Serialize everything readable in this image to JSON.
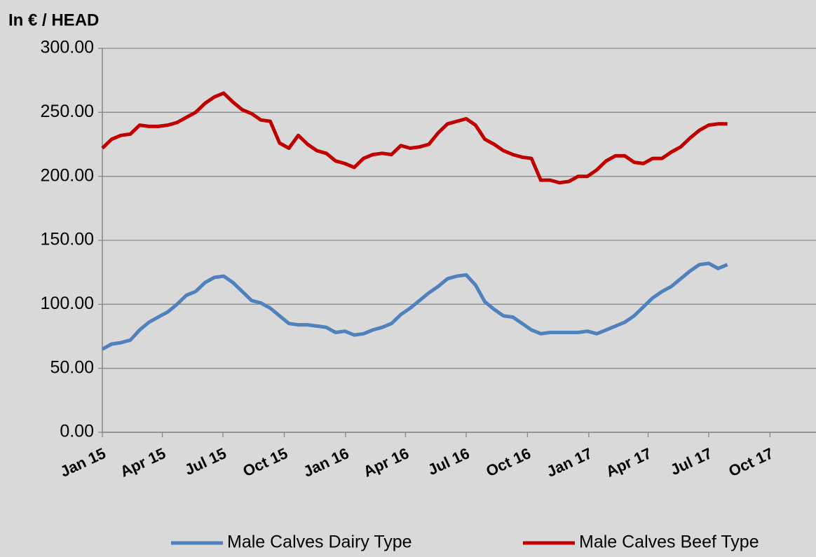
{
  "chart_data": {
    "type": "line",
    "y_axis_label": "In € / HEAD",
    "x": [
      0,
      2,
      4,
      6,
      8,
      10,
      12,
      14,
      16,
      18,
      20,
      22,
      24,
      26,
      28,
      30,
      32,
      34,
      36,
      38,
      40,
      42,
      44,
      46,
      48,
      50,
      52,
      54,
      56,
      58,
      60,
      62,
      64,
      66,
      68,
      70,
      72,
      74,
      76,
      78,
      80,
      82,
      84,
      86,
      88,
      90,
      92,
      94,
      96,
      98,
      100,
      102,
      104,
      106,
      108,
      110,
      112,
      114,
      116,
      118,
      120,
      122,
      124,
      126,
      128,
      130,
      132,
      134
    ],
    "series": [
      {
        "name": "Male Calves Dairy Type",
        "color": "#4f81bd",
        "values": [
          65,
          69,
          70,
          72,
          80,
          86,
          90,
          94,
          100,
          107,
          110,
          117,
          121,
          122,
          117,
          110,
          103,
          101,
          97,
          91,
          85,
          84,
          84,
          83,
          82,
          78,
          79,
          76,
          77,
          80,
          82,
          85,
          92,
          97,
          103,
          109,
          114,
          120,
          122,
          123,
          115,
          102,
          96,
          91,
          90,
          85,
          80,
          77,
          78,
          78,
          78,
          78,
          79,
          77,
          80,
          83,
          86,
          91,
          98,
          105,
          110,
          114,
          120,
          126,
          131,
          132,
          128,
          131
        ]
      },
      {
        "name": "Male Calves Beef Type",
        "color": "#c00000",
        "values": [
          222,
          229,
          232,
          233,
          240,
          239,
          239,
          240,
          242,
          246,
          250,
          257,
          262,
          265,
          258,
          252,
          249,
          244,
          243,
          226,
          222,
          232,
          225,
          220,
          218,
          212,
          210,
          207,
          214,
          217,
          218,
          217,
          224,
          222,
          223,
          225,
          234,
          241,
          243,
          245,
          240,
          229,
          225,
          220,
          217,
          215,
          214,
          197,
          197,
          195,
          196,
          200,
          200,
          205,
          212,
          216,
          216,
          211,
          210,
          214,
          214,
          219,
          223,
          230,
          236,
          240,
          241,
          241
        ]
      }
    ],
    "xlim": [
      0,
      153
    ],
    "xticks": [
      {
        "value": 0,
        "label": "Jan 15"
      },
      {
        "value": 12.86,
        "label": "Apr 15"
      },
      {
        "value": 25.86,
        "label": "Jul 15"
      },
      {
        "value": 39,
        "label": "Oct 15"
      },
      {
        "value": 52.14,
        "label": "Jan 16"
      },
      {
        "value": 65,
        "label": "Apr 16"
      },
      {
        "value": 78,
        "label": "Jul 16"
      },
      {
        "value": 91.14,
        "label": "Oct 16"
      },
      {
        "value": 104.29,
        "label": "Jan 17"
      },
      {
        "value": 117,
        "label": "Apr 17"
      },
      {
        "value": 130,
        "label": "Jul 17"
      },
      {
        "value": 143.14,
        "label": "Oct 17"
      }
    ],
    "ylim": [
      0,
      300
    ],
    "yticks": [
      {
        "value": 0,
        "label": "0.00"
      },
      {
        "value": 50,
        "label": "50.00"
      },
      {
        "value": 100,
        "label": "100.00"
      },
      {
        "value": 150,
        "label": "150.00"
      },
      {
        "value": 200,
        "label": "200.00"
      },
      {
        "value": 250,
        "label": "250.00"
      },
      {
        "value": 300,
        "label": "300.00"
      }
    ],
    "grid": true,
    "legend": "bottom"
  }
}
